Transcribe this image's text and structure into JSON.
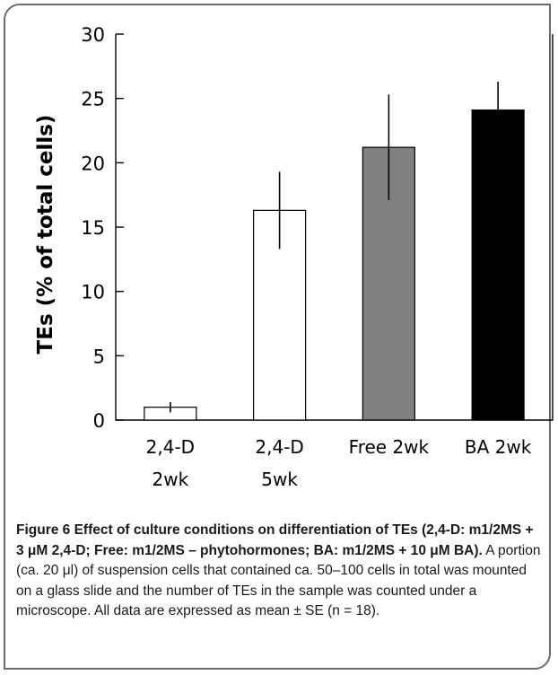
{
  "chart_data": {
    "type": "bar",
    "title": "",
    "ylabel": "TEs (% of total cells)",
    "xlabel": "",
    "ylim": [
      0,
      30
    ],
    "yticks": [
      0,
      5,
      10,
      15,
      20,
      25,
      30
    ],
    "grid": false,
    "categories": [
      [
        "2,4-D",
        "2wk"
      ],
      [
        "2,4-D",
        "5wk"
      ],
      [
        "Free 2wk"
      ],
      [
        "BA 2wk"
      ]
    ],
    "values": [
      1.0,
      16.3,
      21.2,
      24.1
    ],
    "errors": [
      0.4,
      3.0,
      4.1,
      2.2
    ],
    "colors": [
      "#ffffff",
      "#ffffff",
      "#808080",
      "#000000"
    ]
  },
  "caption": {
    "bold": "Figure 6 Effect of culture conditions on differentiation of TEs (2,4-D: m1/2MS + 3 μM 2,4-D; Free: m1/2MS – phytohormones; BA: m1/2MS + 10 μM BA).",
    "body": " A portion (ca. 20 μl) of suspension cells that contained ca. 50–100 cells in total was mounted on a glass slide and the number of TEs in the sample was counted under a microscope. All data are expressed as mean ± SE (n = 18)."
  }
}
